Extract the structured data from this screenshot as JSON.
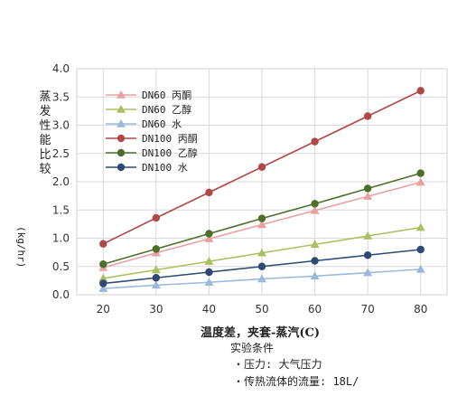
{
  "chart_data": {
    "type": "line",
    "ylabel_chars": [
      "蒸",
      "发",
      "性",
      "能",
      "比",
      "较"
    ],
    "ylabel_unit": "(kg/hr)",
    "xlabel": "温度差，夹套-蒸汽(C)",
    "x": [
      20,
      30,
      40,
      50,
      60,
      70,
      80
    ],
    "xlim": [
      15,
      85
    ],
    "ylim": [
      0,
      4.0
    ],
    "yticks": [
      "0.0",
      "0.5",
      "1.0",
      "1.5",
      "2.0",
      "2.5",
      "3.0",
      "3.5",
      "4.0"
    ],
    "xticks": [
      "20",
      "30",
      "40",
      "50",
      "60",
      "70",
      "80"
    ],
    "grid": true,
    "legend_position": "top-left",
    "series": [
      {
        "name": "DN60 丙酮",
        "color": "#e8a0a0",
        "marker": "triangle",
        "values": [
          0.48,
          0.74,
          0.99,
          1.24,
          1.49,
          1.74,
          1.99
        ]
      },
      {
        "name": "DN60 乙醇",
        "color": "#a8c060",
        "marker": "triangle",
        "values": [
          0.29,
          0.44,
          0.59,
          0.74,
          0.89,
          1.04,
          1.19
        ]
      },
      {
        "name": "DN60 水",
        "color": "#98b8dc",
        "marker": "triangle",
        "values": [
          0.11,
          0.17,
          0.22,
          0.28,
          0.33,
          0.39,
          0.45
        ]
      },
      {
        "name": "DN100 丙酮",
        "color": "#b04848",
        "marker": "circle",
        "values": [
          0.9,
          1.36,
          1.81,
          2.26,
          2.71,
          3.16,
          3.61
        ]
      },
      {
        "name": "DN100 乙醇",
        "color": "#4e6e2c",
        "marker": "circle",
        "values": [
          0.54,
          0.81,
          1.08,
          1.35,
          1.61,
          1.88,
          2.15
        ]
      },
      {
        "name": "DN100 水",
        "color": "#2e4a74",
        "marker": "circle",
        "values": [
          0.2,
          0.3,
          0.4,
          0.5,
          0.6,
          0.7,
          0.8
        ]
      }
    ]
  },
  "conditions": {
    "title": "实验条件",
    "items": [
      "・压力: 大气压力",
      "・传热流体的流量: 18L/"
    ]
  }
}
